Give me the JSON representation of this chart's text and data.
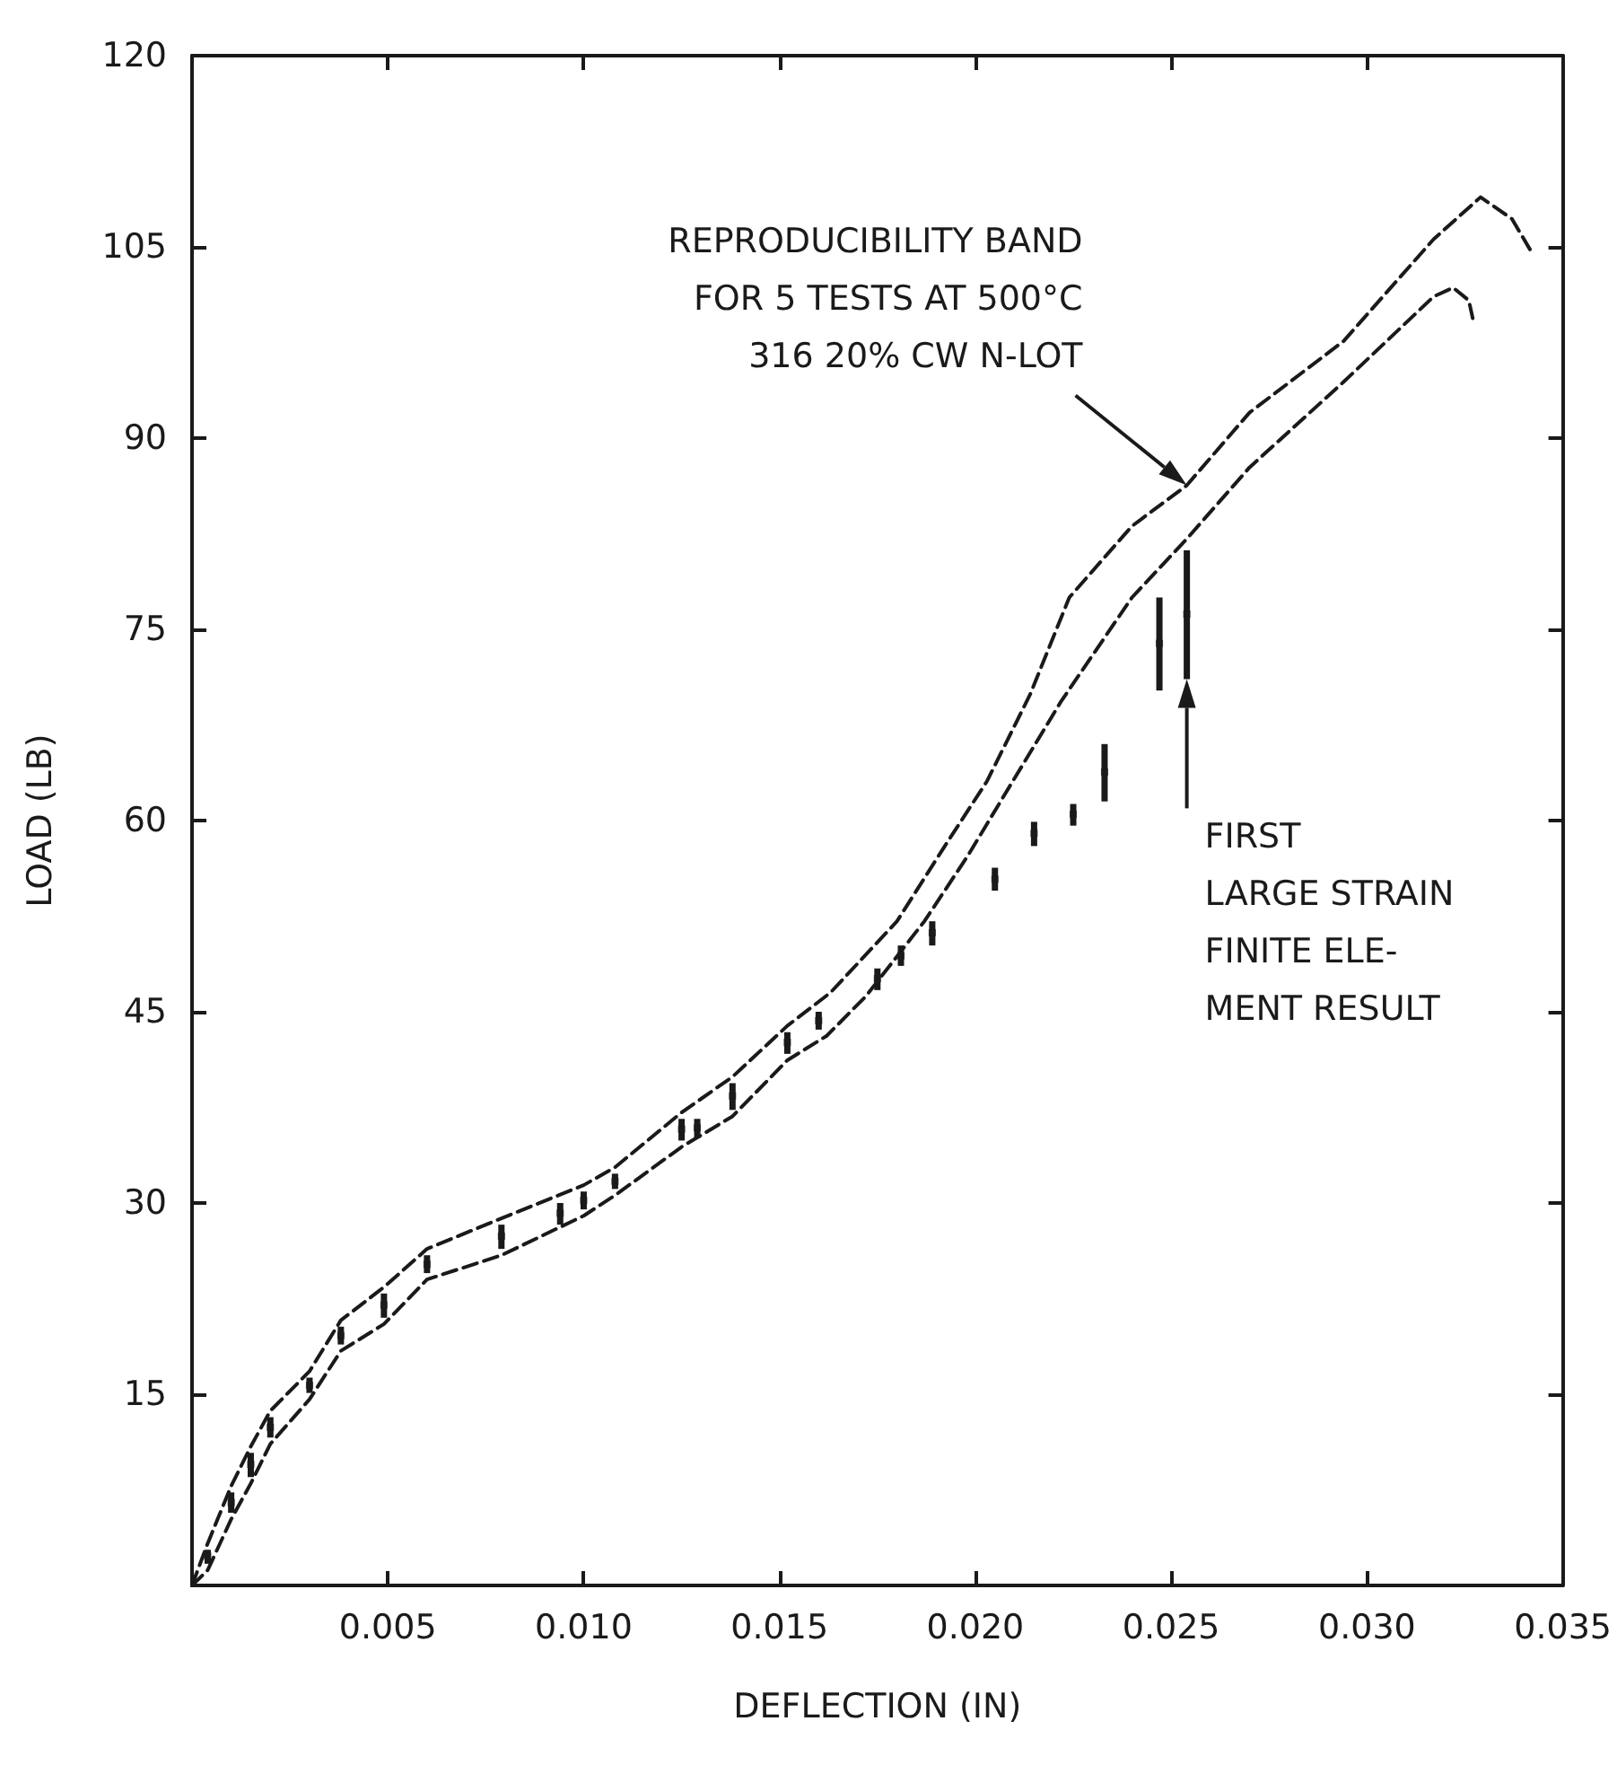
{
  "chart_data": {
    "type": "line",
    "xlabel": "DEFLECTION (IN)",
    "ylabel": "LOAD (LB)",
    "xlim": [
      0,
      0.035
    ],
    "xticks": [
      0.005,
      {
        "value": 0.01,
        "label": "0.010"
      },
      0.015,
      {
        "value": 0.02,
        "label": "0.020"
      },
      0.025,
      {
        "value": 0.03,
        "label": "0.030"
      },
      0.035
    ],
    "ylim": [
      0,
      120
    ],
    "yticks": [
      15,
      30,
      45,
      60,
      75,
      90,
      105,
      120
    ],
    "series": [
      {
        "color": "#1a1a1a",
        "line_style": "dashed",
        "marker": "none",
        "x": [
          0,
          0.0004,
          0.001,
          0.0015,
          0.002,
          0.003,
          0.0038,
          0.0049,
          0.006,
          0.0079,
          0.01,
          0.0108,
          0.0125,
          0.0138,
          0.0152,
          0.0163,
          0.018,
          0.0192,
          0.0203,
          0.0214,
          0.0224,
          0.024,
          0.0254,
          0.027,
          0.0294,
          0.0317,
          0.0329,
          0.0337,
          0.0342
        ],
        "values": [
          0,
          3.3,
          7.8,
          10.9,
          13.7,
          16.8,
          20.8,
          23.4,
          26.4,
          28.8,
          31.4,
          32.8,
          37.1,
          39.9,
          43.9,
          46.5,
          52.1,
          57.9,
          63.1,
          69.9,
          77.5,
          83.1,
          86.3,
          92.0,
          97.6,
          105.6,
          108.9,
          107.2,
          104.6
        ]
      },
      {
        "color": "#1a1a1a",
        "line_style": "dashed",
        "marker": "none",
        "x": [
          0,
          0.0004,
          0.001,
          0.0015,
          0.002,
          0.003,
          0.0038,
          0.0049,
          0.006,
          0.0079,
          0.01,
          0.0108,
          0.0125,
          0.0138,
          0.0152,
          0.0162,
          0.0172,
          0.0187,
          0.0198,
          0.0209,
          0.0222,
          0.024,
          0.0254,
          0.027,
          0.0294,
          0.0317,
          0.0322,
          0.0326,
          0.0327
        ],
        "values": [
          0,
          1.2,
          5.2,
          8.0,
          11.1,
          14.6,
          18.4,
          20.5,
          24.0,
          25.9,
          29.0,
          30.6,
          34.4,
          36.8,
          41.2,
          43.1,
          46.2,
          52.1,
          57.2,
          62.8,
          69.4,
          77.5,
          82.1,
          87.7,
          94.4,
          101.1,
          101.8,
          100.8,
          99.4
        ]
      },
      {
        "type": "scatter",
        "color": "#1a1a1a",
        "x": [
          0.0004,
          0.001,
          0.0015,
          0.002,
          0.003,
          0.0038,
          0.0049,
          0.006,
          0.0079,
          0.0094,
          0.01,
          0.0108,
          0.0125,
          0.0129,
          0.0138,
          0.0152,
          0.016,
          0.0175,
          0.0181,
          0.0189,
          0.0205,
          0.0215,
          0.0225,
          0.0233,
          0.0247,
          0.0254
        ],
        "values": [
          2.3,
          6.5,
          9.5,
          12.4,
          15.7,
          19.6,
          22.0,
          25.2,
          27.4,
          29.2,
          30.2,
          31.7,
          35.8,
          35.9,
          38.4,
          42.6,
          44.3,
          47.6,
          49.4,
          51.2,
          55.4,
          59.0,
          60.5,
          63.8,
          73.9,
          76.2
        ],
        "errors": [
          [
            1.7,
            2.8
          ],
          [
            5.7,
            7.3
          ],
          [
            8.5,
            10.4
          ],
          [
            11.6,
            13.2
          ],
          [
            15.1,
            16.3
          ],
          [
            18.9,
            20.3
          ],
          [
            21.0,
            22.9
          ],
          [
            24.5,
            25.9
          ],
          [
            26.4,
            28.3
          ],
          [
            28.3,
            30.0
          ],
          [
            29.5,
            30.9
          ],
          [
            31.1,
            32.3
          ],
          [
            34.9,
            36.6
          ],
          [
            35.1,
            36.6
          ],
          [
            37.3,
            39.4
          ],
          [
            41.7,
            43.4
          ],
          [
            43.6,
            45.0
          ],
          [
            46.7,
            48.4
          ],
          [
            48.6,
            50.2
          ],
          [
            50.2,
            52.1
          ],
          [
            54.5,
            56.3
          ],
          [
            58.0,
            59.9
          ],
          [
            59.6,
            61.3
          ],
          [
            61.5,
            66.0
          ],
          [
            70.2,
            77.5
          ],
          [
            71.1,
            81.2
          ]
        ]
      }
    ],
    "annotations": [
      "REPRODUCIBILITY BAND\nFOR 5 TESTS AT 500°C\n316 20% CW N-LOT",
      "FIRST\nLARGE STRAIN\nFINITE ELE-\nMENT RESULT"
    ]
  }
}
